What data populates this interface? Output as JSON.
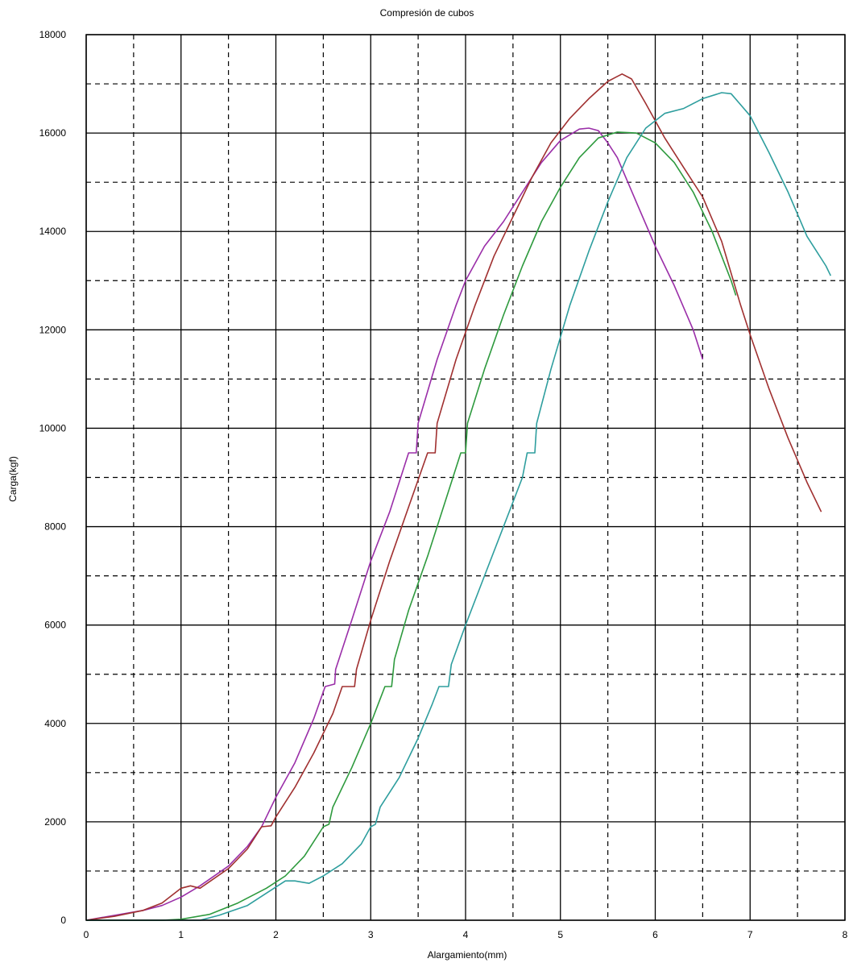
{
  "chart_data": {
    "type": "line",
    "title": "Compresión de cubos",
    "xlabel": "Alargamiento(mm)",
    "ylabel": "Carga(kgf)",
    "xlim": [
      0,
      8
    ],
    "ylim": [
      0,
      18000
    ],
    "x_major_ticks": [
      0,
      1,
      2,
      3,
      4,
      5,
      6,
      7,
      8
    ],
    "y_major_ticks": [
      0,
      2000,
      4000,
      6000,
      8000,
      10000,
      12000,
      14000,
      16000,
      18000
    ],
    "x_tick_labels": [
      "0",
      "1",
      "2",
      "3",
      "4",
      "5",
      "6",
      "7",
      "8"
    ],
    "y_tick_labels": [
      "0",
      "2000",
      "4000",
      "6000",
      "8000",
      "10000",
      "12000",
      "14000",
      "16000",
      "18000"
    ],
    "grid": "major solid, minor dashed",
    "series": [
      {
        "color": "#9a2ea8",
        "points": [
          [
            0,
            0
          ],
          [
            0.3,
            100
          ],
          [
            0.6,
            200
          ],
          [
            0.8,
            300
          ],
          [
            1.0,
            470
          ],
          [
            1.2,
            700
          ],
          [
            1.5,
            1100
          ],
          [
            1.7,
            1500
          ],
          [
            1.85,
            1900
          ],
          [
            1.9,
            2100
          ],
          [
            2.0,
            2500
          ],
          [
            2.2,
            3200
          ],
          [
            2.4,
            4100
          ],
          [
            2.52,
            4750
          ],
          [
            2.62,
            4800
          ],
          [
            2.63,
            5100
          ],
          [
            2.8,
            6100
          ],
          [
            3.0,
            7300
          ],
          [
            3.2,
            8300
          ],
          [
            3.4,
            9500
          ],
          [
            3.48,
            9500
          ],
          [
            3.5,
            10100
          ],
          [
            3.7,
            11400
          ],
          [
            3.9,
            12500
          ],
          [
            4.0,
            13000
          ],
          [
            4.2,
            13700
          ],
          [
            4.4,
            14200
          ],
          [
            4.6,
            14800
          ],
          [
            4.8,
            15400
          ],
          [
            5.0,
            15850
          ],
          [
            5.2,
            16080
          ],
          [
            5.3,
            16100
          ],
          [
            5.4,
            16050
          ],
          [
            5.5,
            15800
          ],
          [
            5.6,
            15500
          ],
          [
            5.8,
            14600
          ],
          [
            6.0,
            13700
          ],
          [
            6.2,
            12900
          ],
          [
            6.4,
            12000
          ],
          [
            6.5,
            11400
          ]
        ]
      },
      {
        "color": "#a03030",
        "points": [
          [
            0,
            0
          ],
          [
            0.3,
            80
          ],
          [
            0.6,
            200
          ],
          [
            0.8,
            350
          ],
          [
            1.0,
            650
          ],
          [
            1.1,
            700
          ],
          [
            1.2,
            650
          ],
          [
            1.5,
            1050
          ],
          [
            1.7,
            1450
          ],
          [
            1.85,
            1900
          ],
          [
            1.95,
            1920
          ],
          [
            2.0,
            2100
          ],
          [
            2.2,
            2700
          ],
          [
            2.4,
            3400
          ],
          [
            2.6,
            4200
          ],
          [
            2.7,
            4750
          ],
          [
            2.83,
            4750
          ],
          [
            2.85,
            5100
          ],
          [
            3.0,
            6100
          ],
          [
            3.2,
            7300
          ],
          [
            3.4,
            8400
          ],
          [
            3.6,
            9500
          ],
          [
            3.68,
            9500
          ],
          [
            3.7,
            10100
          ],
          [
            3.9,
            11400
          ],
          [
            4.1,
            12500
          ],
          [
            4.3,
            13500
          ],
          [
            4.5,
            14300
          ],
          [
            4.7,
            15100
          ],
          [
            4.9,
            15800
          ],
          [
            5.1,
            16300
          ],
          [
            5.3,
            16700
          ],
          [
            5.5,
            17050
          ],
          [
            5.65,
            17200
          ],
          [
            5.75,
            17100
          ],
          [
            5.9,
            16600
          ],
          [
            6.1,
            15900
          ],
          [
            6.3,
            15300
          ],
          [
            6.5,
            14700
          ],
          [
            6.7,
            13800
          ],
          [
            6.9,
            12500
          ],
          [
            7.0,
            11900
          ],
          [
            7.2,
            10800
          ],
          [
            7.4,
            9800
          ],
          [
            7.6,
            8900
          ],
          [
            7.75,
            8300
          ]
        ]
      },
      {
        "color": "#2e9a3e",
        "points": [
          [
            0,
            0
          ],
          [
            0.8,
            0
          ],
          [
            1.0,
            20
          ],
          [
            1.3,
            120
          ],
          [
            1.6,
            350
          ],
          [
            1.9,
            650
          ],
          [
            2.1,
            900
          ],
          [
            2.3,
            1300
          ],
          [
            2.5,
            1900
          ],
          [
            2.56,
            1950
          ],
          [
            2.6,
            2300
          ],
          [
            2.8,
            3100
          ],
          [
            3.0,
            4000
          ],
          [
            3.1,
            4500
          ],
          [
            3.15,
            4750
          ],
          [
            3.22,
            4750
          ],
          [
            3.25,
            5300
          ],
          [
            3.4,
            6300
          ],
          [
            3.6,
            7400
          ],
          [
            3.8,
            8600
          ],
          [
            3.95,
            9500
          ],
          [
            4.0,
            9500
          ],
          [
            4.02,
            10100
          ],
          [
            4.2,
            11200
          ],
          [
            4.4,
            12300
          ],
          [
            4.6,
            13300
          ],
          [
            4.8,
            14200
          ],
          [
            5.0,
            14900
          ],
          [
            5.2,
            15500
          ],
          [
            5.4,
            15900
          ],
          [
            5.6,
            16020
          ],
          [
            5.8,
            16000
          ],
          [
            6.0,
            15800
          ],
          [
            6.2,
            15400
          ],
          [
            6.4,
            14800
          ],
          [
            6.6,
            14000
          ],
          [
            6.8,
            13000
          ],
          [
            6.85,
            12700
          ]
        ]
      },
      {
        "color": "#2e9e9e",
        "points": [
          [
            0,
            0
          ],
          [
            1.2,
            0
          ],
          [
            1.4,
            100
          ],
          [
            1.7,
            300
          ],
          [
            1.9,
            550
          ],
          [
            2.1,
            800
          ],
          [
            2.2,
            800
          ],
          [
            2.35,
            750
          ],
          [
            2.5,
            900
          ],
          [
            2.7,
            1150
          ],
          [
            2.9,
            1550
          ],
          [
            3.0,
            1900
          ],
          [
            3.05,
            1950
          ],
          [
            3.1,
            2300
          ],
          [
            3.3,
            2900
          ],
          [
            3.5,
            3700
          ],
          [
            3.65,
            4400
          ],
          [
            3.72,
            4750
          ],
          [
            3.82,
            4750
          ],
          [
            3.85,
            5200
          ],
          [
            4.0,
            6000
          ],
          [
            4.2,
            7000
          ],
          [
            4.4,
            8000
          ],
          [
            4.6,
            9000
          ],
          [
            4.65,
            9500
          ],
          [
            4.73,
            9500
          ],
          [
            4.75,
            10100
          ],
          [
            4.9,
            11200
          ],
          [
            5.1,
            12500
          ],
          [
            5.3,
            13600
          ],
          [
            5.5,
            14600
          ],
          [
            5.7,
            15500
          ],
          [
            5.9,
            16100
          ],
          [
            6.1,
            16400
          ],
          [
            6.3,
            16500
          ],
          [
            6.5,
            16700
          ],
          [
            6.7,
            16820
          ],
          [
            6.8,
            16800
          ],
          [
            7.0,
            16350
          ],
          [
            7.2,
            15600
          ],
          [
            7.4,
            14800
          ],
          [
            7.6,
            13900
          ],
          [
            7.8,
            13300
          ],
          [
            7.85,
            13100
          ]
        ]
      }
    ]
  }
}
